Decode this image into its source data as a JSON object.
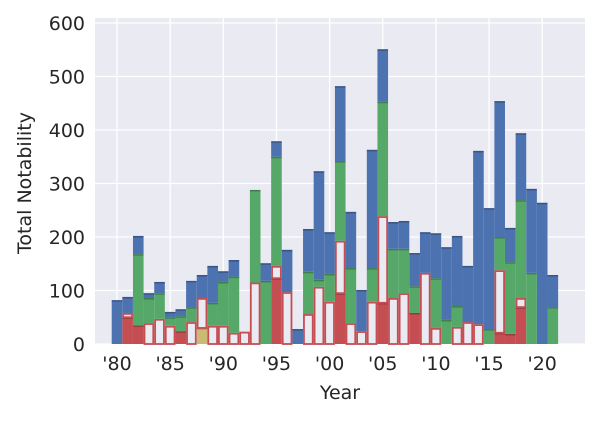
{
  "chart_data": {
    "type": "bar",
    "stacked": true,
    "title": "",
    "xlabel": "Year",
    "ylabel": "Total Notability",
    "ylim": [
      0,
      600
    ],
    "xlim": [
      1978,
      2024
    ],
    "yticks": [
      0,
      100,
      200,
      300,
      400,
      500,
      600
    ],
    "xticks": [
      {
        "year": 1980,
        "label": "'80"
      },
      {
        "year": 1985,
        "label": "'85"
      },
      {
        "year": 1990,
        "label": "'90"
      },
      {
        "year": 1995,
        "label": "'95"
      },
      {
        "year": 2000,
        "label": "'00"
      },
      {
        "year": 2005,
        "label": "'05"
      },
      {
        "year": 2010,
        "label": "'10"
      },
      {
        "year": 2015,
        "label": "'15"
      },
      {
        "year": 2020,
        "label": "'20"
      }
    ],
    "grid": true,
    "background": "#eaeaf2",
    "colors": {
      "red": "#c44e52",
      "hollow": "#eaeaf2",
      "hollow_edge": "#c44e52",
      "green": "#55a868",
      "blue": "#4c72b0",
      "tan": "#ccb974"
    },
    "bars": [
      {
        "year": 1980,
        "segments": [
          [
            "blue",
            82
          ]
        ]
      },
      {
        "year": 1981,
        "segments": [
          [
            "red",
            50
          ],
          [
            "hollow",
            8
          ],
          [
            "blue",
            30
          ]
        ]
      },
      {
        "year": 1982,
        "segments": [
          [
            "red",
            35
          ],
          [
            "green",
            133
          ],
          [
            "blue",
            34
          ]
        ]
      },
      {
        "year": 1983,
        "segments": [
          [
            "hollow",
            39
          ],
          [
            "green",
            47
          ],
          [
            "blue",
            9
          ]
        ]
      },
      {
        "year": 1984,
        "segments": [
          [
            "hollow",
            47
          ],
          [
            "green",
            48
          ],
          [
            "blue",
            21
          ]
        ]
      },
      {
        "year": 1985,
        "segments": [
          [
            "hollow",
            34
          ],
          [
            "green",
            16
          ],
          [
            "blue",
            10
          ]
        ]
      },
      {
        "year": 1986,
        "segments": [
          [
            "red",
            24
          ],
          [
            "green",
            28
          ],
          [
            "blue",
            13
          ]
        ]
      },
      {
        "year": 1987,
        "segments": [
          [
            "hollow",
            41
          ],
          [
            "green",
            28
          ],
          [
            "blue",
            49
          ]
        ]
      },
      {
        "year": 1988,
        "segments": [
          [
            "tan",
            30
          ],
          [
            "hollow",
            56
          ],
          [
            "blue",
            43
          ]
        ]
      },
      {
        "year": 1989,
        "segments": [
          [
            "hollow",
            34
          ],
          [
            "green",
            43
          ],
          [
            "blue",
            69
          ]
        ]
      },
      {
        "year": 1990,
        "segments": [
          [
            "hollow",
            34
          ],
          [
            "green",
            82
          ],
          [
            "blue",
            20
          ]
        ]
      },
      {
        "year": 1991,
        "segments": [
          [
            "hollow",
            21
          ],
          [
            "green",
            105
          ],
          [
            "blue",
            31
          ]
        ]
      },
      {
        "year": 1992,
        "segments": [
          [
            "hollow",
            23
          ]
        ]
      },
      {
        "year": 1993,
        "segments": [
          [
            "hollow",
            115
          ],
          [
            "green",
            173
          ]
        ]
      },
      {
        "year": 1994,
        "segments": [
          [
            "green",
            118
          ],
          [
            "blue",
            33
          ]
        ]
      },
      {
        "year": 1995,
        "segments": [
          [
            "red",
            123
          ],
          [
            "hollow",
            23
          ],
          [
            "green",
            204
          ],
          [
            "blue",
            29
          ]
        ]
      },
      {
        "year": 1996,
        "segments": [
          [
            "hollow",
            97
          ],
          [
            "blue",
            79
          ]
        ]
      },
      {
        "year": 1997,
        "segments": [
          [
            "blue",
            28
          ]
        ]
      },
      {
        "year": 1998,
        "segments": [
          [
            "hollow",
            56
          ],
          [
            "green",
            79
          ],
          [
            "blue",
            80
          ]
        ]
      },
      {
        "year": 1999,
        "segments": [
          [
            "hollow",
            107
          ],
          [
            "green",
            13
          ],
          [
            "blue",
            203
          ]
        ]
      },
      {
        "year": 2000,
        "segments": [
          [
            "hollow",
            79
          ],
          [
            "green",
            52
          ],
          [
            "blue",
            78
          ]
        ]
      },
      {
        "year": 2001,
        "segments": [
          [
            "red",
            95
          ],
          [
            "hollow",
            98
          ],
          [
            "green",
            149
          ],
          [
            "blue",
            140
          ]
        ]
      },
      {
        "year": 2002,
        "segments": [
          [
            "hollow",
            39
          ],
          [
            "green",
            103
          ],
          [
            "blue",
            105
          ]
        ]
      },
      {
        "year": 2003,
        "segments": [
          [
            "hollow",
            24
          ],
          [
            "blue",
            77
          ]
        ]
      },
      {
        "year": 2004,
        "segments": [
          [
            "hollow",
            79
          ],
          [
            "green",
            63
          ],
          [
            "blue",
            221
          ]
        ]
      },
      {
        "year": 2005,
        "segments": [
          [
            "red",
            77
          ],
          [
            "hollow",
            162
          ],
          [
            "green",
            214
          ],
          [
            "blue",
            98
          ]
        ]
      },
      {
        "year": 2006,
        "segments": [
          [
            "hollow",
            86
          ],
          [
            "green",
            92
          ],
          [
            "blue",
            50
          ]
        ]
      },
      {
        "year": 2007,
        "segments": [
          [
            "hollow",
            95
          ],
          [
            "green",
            83
          ],
          [
            "blue",
            52
          ]
        ]
      },
      {
        "year": 2008,
        "segments": [
          [
            "red",
            58
          ],
          [
            "green",
            50
          ],
          [
            "blue",
            62
          ]
        ]
      },
      {
        "year": 2009,
        "segments": [
          [
            "hollow",
            133
          ],
          [
            "blue",
            76
          ]
        ]
      },
      {
        "year": 2010,
        "segments": [
          [
            "hollow",
            30
          ],
          [
            "green",
            93
          ],
          [
            "blue",
            84
          ]
        ]
      },
      {
        "year": 2011,
        "segments": [
          [
            "green",
            45
          ],
          [
            "blue",
            136
          ]
        ]
      },
      {
        "year": 2012,
        "segments": [
          [
            "hollow",
            32
          ],
          [
            "green",
            39
          ],
          [
            "blue",
            131
          ]
        ]
      },
      {
        "year": 2013,
        "segments": [
          [
            "hollow",
            41
          ],
          [
            "blue",
            105
          ]
        ]
      },
      {
        "year": 2014,
        "segments": [
          [
            "hollow",
            37
          ],
          [
            "blue",
            324
          ]
        ]
      },
      {
        "year": 2015,
        "segments": [
          [
            "green",
            28
          ],
          [
            "blue",
            226
          ]
        ]
      },
      {
        "year": 2016,
        "segments": [
          [
            "red",
            21
          ],
          [
            "hollow",
            117
          ],
          [
            "green",
            62
          ],
          [
            "blue",
            254
          ]
        ]
      },
      {
        "year": 2017,
        "segments": [
          [
            "red",
            19
          ],
          [
            "green",
            134
          ],
          [
            "blue",
            64
          ]
        ]
      },
      {
        "year": 2018,
        "segments": [
          [
            "red",
            69
          ],
          [
            "hollow",
            17
          ],
          [
            "green",
            183
          ],
          [
            "blue",
            125
          ]
        ]
      },
      {
        "year": 2019,
        "segments": [
          [
            "green",
            133
          ],
          [
            "blue",
            157
          ]
        ]
      },
      {
        "year": 2020,
        "segments": [
          [
            "blue",
            264
          ]
        ]
      },
      {
        "year": 2021,
        "segments": [
          [
            "green",
            69
          ],
          [
            "blue",
            60
          ]
        ]
      }
    ]
  }
}
